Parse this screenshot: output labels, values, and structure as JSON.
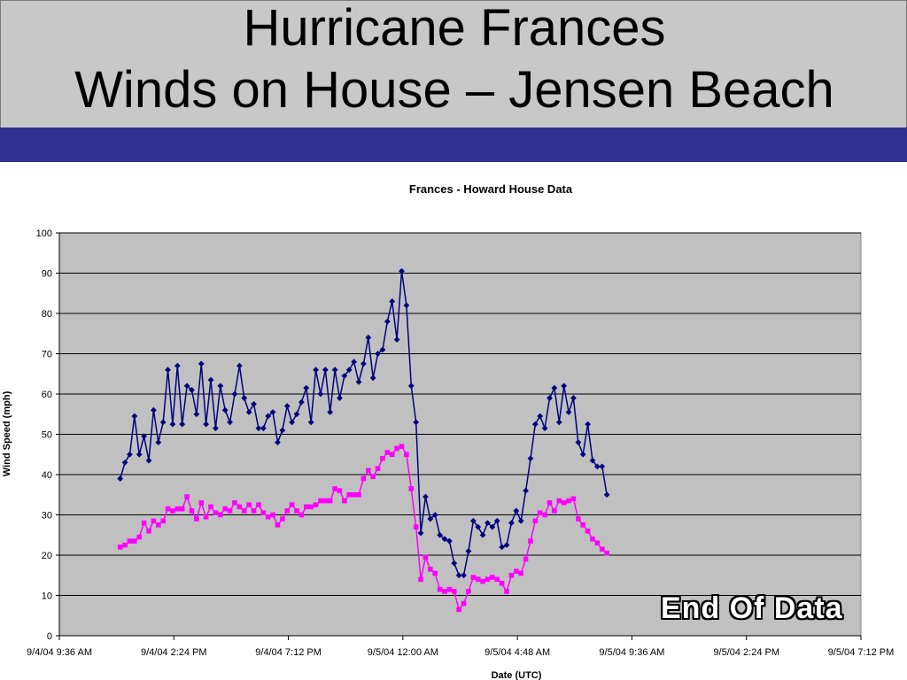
{
  "slide": {
    "title_line1": "Hurricane Frances",
    "title_line2": "Winds on House – Jensen Beach",
    "annotation": "End Of Data",
    "colors": {
      "header_bg": "#c8c8c8",
      "band": "#2e3192",
      "plot_bg": "#c0c0c0"
    }
  },
  "chart_data": {
    "type": "line",
    "title": "Frances - Howard House Data",
    "xlabel": "Date (UTC)",
    "ylabel": "Wind Speed (mph)",
    "ylim": [
      0,
      100
    ],
    "yticks": [
      0,
      10,
      20,
      30,
      40,
      50,
      60,
      70,
      80,
      90,
      100
    ],
    "xlim": [
      "2004-09-04T09:36",
      "2004-09-05T19:12"
    ],
    "xtick_labels": [
      "9/4/04 9:36 AM",
      "9/4/04 2:24 PM",
      "9/4/04 7:12 PM",
      "9/5/04 12:00 AM",
      "9/5/04 4:48 AM",
      "9/5/04 9:36 AM",
      "9/5/04 2:24 PM",
      "9/5/04 7:12 PM"
    ],
    "grid": "horizontal",
    "legend": "none",
    "x_start": "2004-09-04T12:09",
    "x_step_minutes": 12,
    "series": [
      {
        "color": "#000080",
        "marker": "diamond",
        "values": [
          39,
          43,
          45,
          54.5,
          45,
          49.5,
          43.5,
          56,
          48,
          53,
          66,
          52.5,
          67,
          52.5,
          62,
          61,
          55,
          67.5,
          52.5,
          63.5,
          51.5,
          62,
          56,
          53,
          60,
          67,
          59,
          55.5,
          57.5,
          51.5,
          51.5,
          54.5,
          55.5,
          48,
          51,
          57,
          53,
          55,
          58,
          61.5,
          53,
          66,
          60,
          66,
          55.5,
          66,
          59,
          64.5,
          66,
          68,
          63,
          67.5,
          74,
          64,
          70,
          71,
          78,
          83,
          73.5,
          90.5,
          82,
          62,
          53,
          25.5,
          34.5,
          29,
          30,
          25,
          24,
          23.5,
          18,
          15,
          15,
          21,
          28.5,
          27,
          25,
          28,
          27,
          28.5,
          22,
          22.5,
          28,
          31,
          28.5,
          36,
          44,
          52.5,
          54.5,
          51.5,
          59,
          61.5,
          53,
          62,
          55.5,
          59,
          48,
          45,
          52.5,
          43.5,
          42,
          42,
          35
        ]
      },
      {
        "color": "#ff00ff",
        "marker": "square",
        "values": [
          22,
          22.5,
          23.5,
          23.5,
          24.5,
          28,
          26,
          28.5,
          27.5,
          28.5,
          31.5,
          31,
          31.5,
          31.5,
          34.5,
          31,
          29,
          33,
          29.5,
          32,
          30.5,
          30,
          31.5,
          31,
          33,
          32,
          31,
          32.5,
          31,
          32.5,
          30.5,
          29.5,
          30,
          27.5,
          29,
          31,
          32.5,
          31,
          30,
          32,
          32,
          32.5,
          33.5,
          33.5,
          33.5,
          36.5,
          36,
          33.5,
          35,
          35,
          35,
          39,
          41,
          39.5,
          41.5,
          44,
          45.5,
          45,
          46.5,
          47,
          45,
          36.5,
          27,
          14,
          19.5,
          16.5,
          15.5,
          11.5,
          11,
          11.5,
          11,
          6.5,
          8,
          11,
          14.5,
          14,
          13.5,
          14,
          14.5,
          14,
          13,
          11,
          15,
          16,
          15.5,
          19,
          23.5,
          28.5,
          30.5,
          30,
          33,
          31,
          33.5,
          33,
          33.5,
          34,
          29,
          27.5,
          26,
          24,
          23,
          21.5,
          20.5
        ]
      }
    ]
  }
}
